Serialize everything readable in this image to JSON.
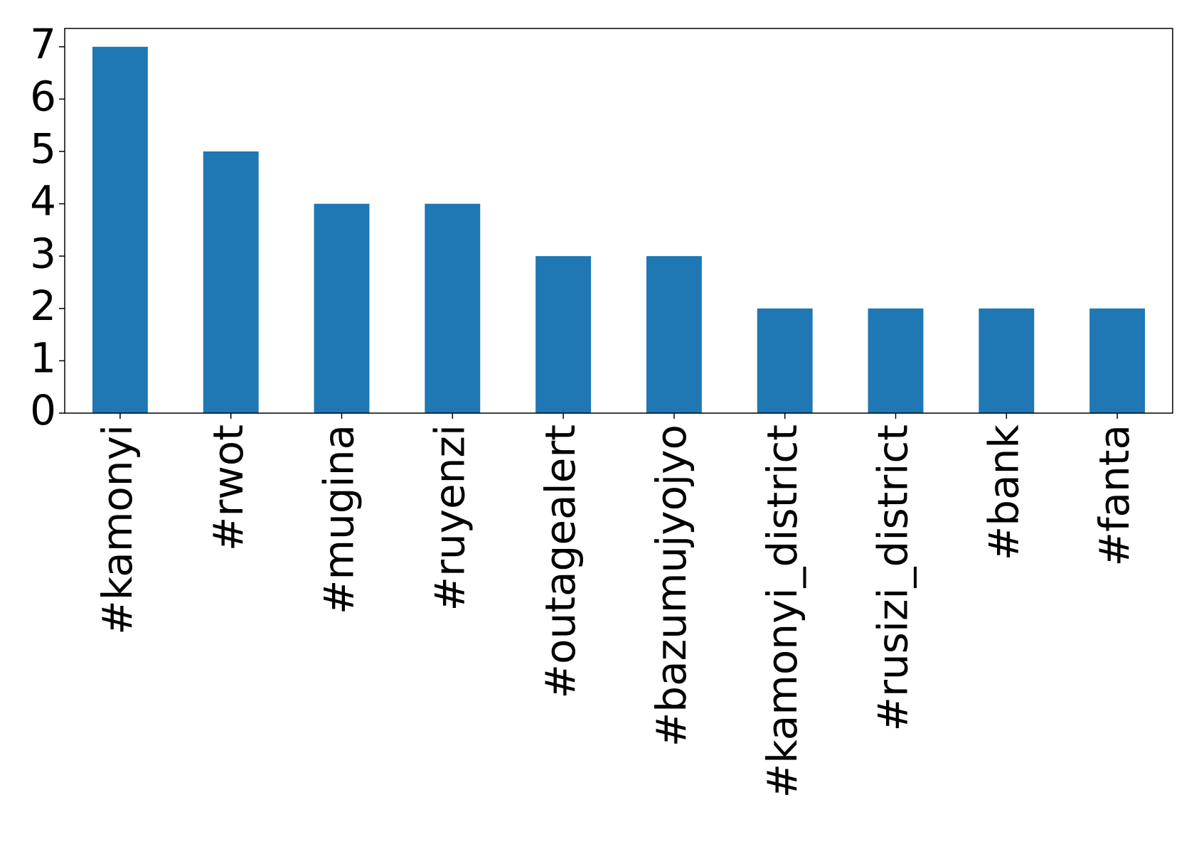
{
  "chart_data": {
    "type": "bar",
    "categories": [
      "#kamonyi",
      "#rwot",
      "#mugina",
      "#ruyenzi",
      "#outagealert",
      "#bazumujyojyo",
      "#kamonyi_district",
      "#rusizi_district",
      "#bank",
      "#fanta"
    ],
    "values": [
      7,
      5,
      4,
      4,
      3,
      3,
      2,
      2,
      2,
      2
    ],
    "color": "#1f77b4",
    "ylim": [
      0,
      7.35
    ],
    "yticks": [
      0,
      1,
      2,
      3,
      4,
      5,
      6,
      7
    ],
    "grid": false
  }
}
